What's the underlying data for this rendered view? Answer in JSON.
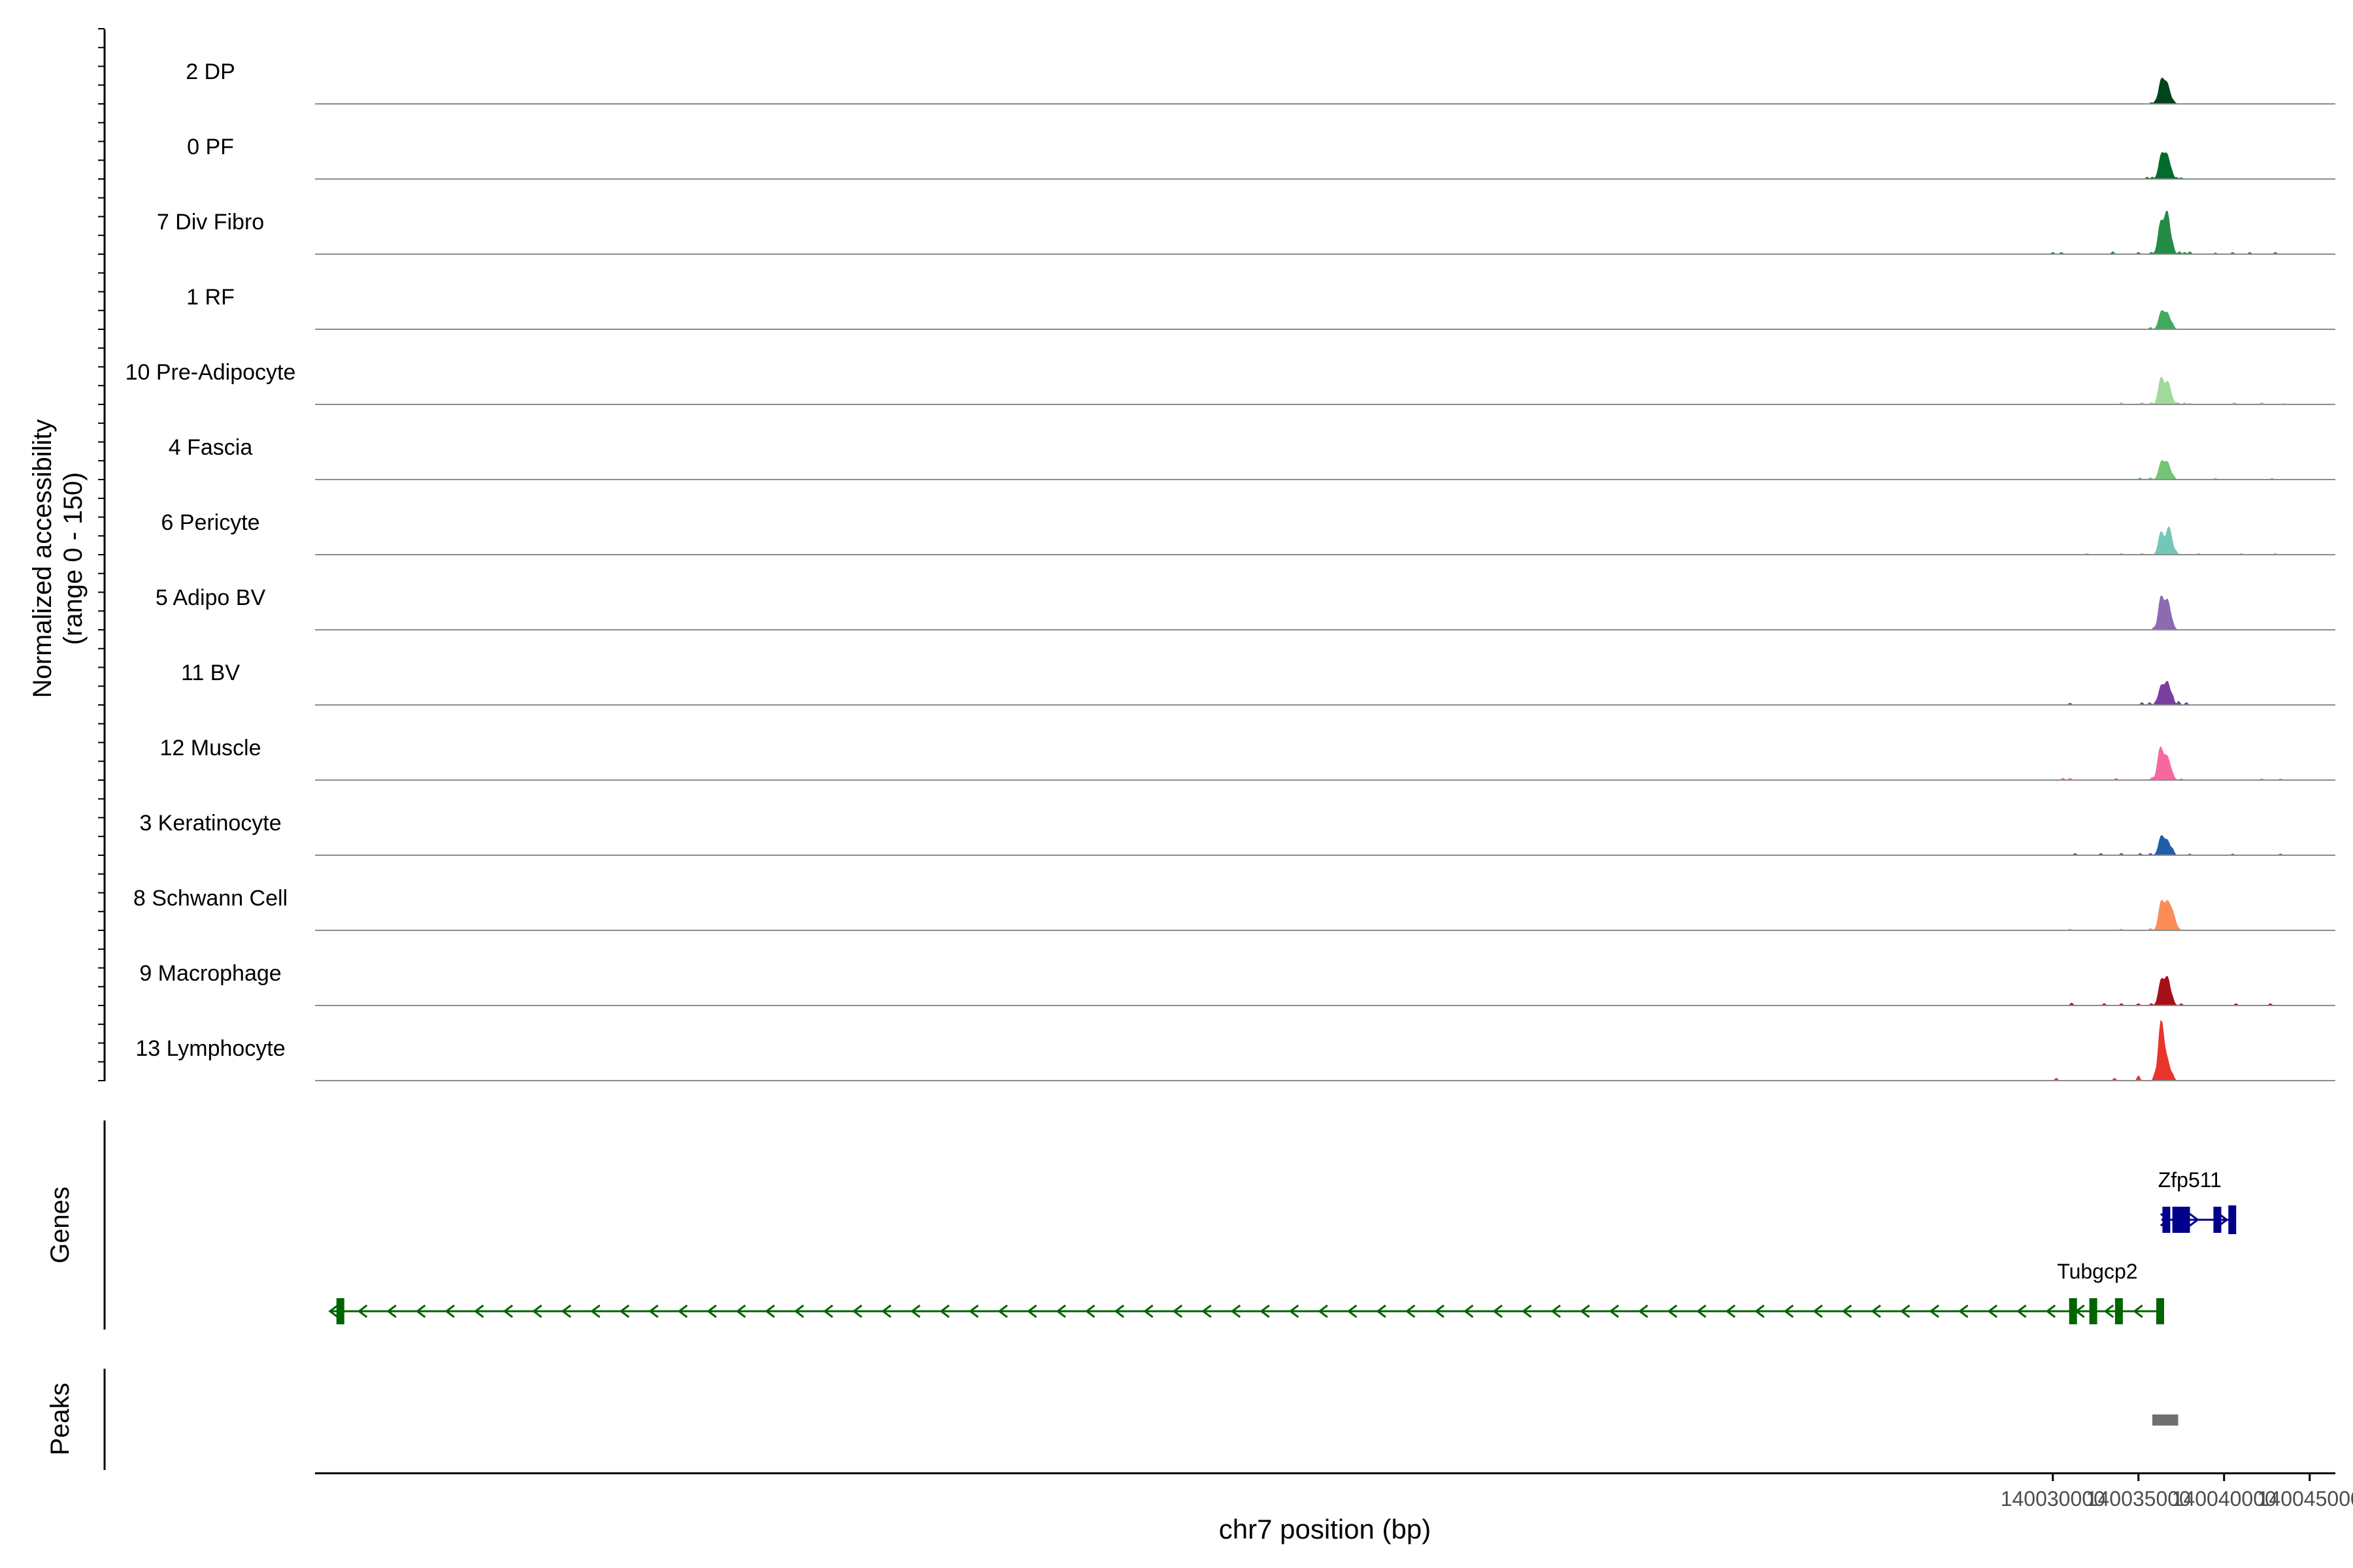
{
  "chart_data": {
    "type": "area",
    "y_axis_title_line1": "Normalized accessibility",
    "y_axis_title_line2": "(range 0 - 150)",
    "y_range": [
      0,
      150
    ],
    "x_axis_title": "chr7 position (bp)",
    "x_range": [
      139928500,
      140046500
    ],
    "x_ticks": [
      {
        "value": 140030000,
        "label": "140030000"
      },
      {
        "value": 140035000,
        "label": "140035000"
      },
      {
        "value": 140040000,
        "label": "140040000"
      },
      {
        "value": 140045000,
        "label": "140045000"
      }
    ],
    "tracks": [
      {
        "label": "2 DP",
        "color": "#00441b",
        "peaks": [
          [
            140036340,
            38
          ],
          [
            140036680,
            27
          ]
        ],
        "noise": [
          [
            140035750,
            2
          ],
          [
            140036000,
            3
          ],
          [
            140037050,
            2
          ]
        ]
      },
      {
        "label": "0 PF",
        "color": "#006d2c",
        "peaks": [
          [
            140036340,
            38
          ],
          [
            140036680,
            33
          ]
        ],
        "noise": [
          [
            140035500,
            3
          ],
          [
            140035800,
            3
          ],
          [
            140036950,
            4
          ],
          [
            140037250,
            2
          ],
          [
            140037500,
            2
          ]
        ]
      },
      {
        "label": "7 Div Fibro",
        "color": "#238b45",
        "peaks": [
          [
            140036300,
            50
          ],
          [
            140036680,
            62
          ]
        ],
        "noise": [
          [
            140030000,
            3
          ],
          [
            140030500,
            3
          ],
          [
            140033500,
            4
          ],
          [
            140035000,
            3
          ],
          [
            140035750,
            3
          ],
          [
            140037000,
            6
          ],
          [
            140037400,
            4
          ],
          [
            140037700,
            3
          ],
          [
            140038000,
            4
          ],
          [
            140039500,
            2
          ],
          [
            140040500,
            3
          ],
          [
            140041500,
            3
          ],
          [
            140043000,
            3
          ],
          [
            140044000,
            3
          ],
          [
            140045000,
            3
          ]
        ]
      },
      {
        "label": "1 RF",
        "color": "#41ab5d",
        "peaks": [
          [
            140036340,
            28
          ],
          [
            140036700,
            22
          ]
        ],
        "noise": [
          [
            140035700,
            3
          ],
          [
            140037000,
            4
          ]
        ]
      },
      {
        "label": "10 Pre-Adipocyte",
        "color": "#a1d99b",
        "peaks": [
          [
            140036320,
            42
          ],
          [
            140036730,
            32
          ]
        ],
        "noise": [
          [
            139930000,
            3
          ],
          [
            140034000,
            3
          ],
          [
            140035200,
            3
          ],
          [
            140035750,
            3
          ],
          [
            140037300,
            3
          ],
          [
            140037700,
            3
          ],
          [
            140038000,
            2
          ],
          [
            140040600,
            3
          ],
          [
            140042200,
            3
          ],
          [
            140043500,
            2
          ]
        ]
      },
      {
        "label": "4 Fascia",
        "color": "#74c476",
        "peaks": [
          [
            140036340,
            28
          ],
          [
            140036700,
            24
          ]
        ],
        "noise": [
          [
            140035100,
            3
          ],
          [
            140035700,
            3
          ],
          [
            140037050,
            3
          ],
          [
            140039500,
            2
          ],
          [
            140042800,
            2
          ]
        ]
      },
      {
        "label": "6 Pericyte",
        "color": "#74c7b8",
        "peaks": [
          [
            140036320,
            36
          ],
          [
            140036780,
            42
          ]
        ],
        "noise": [
          [
            139930500,
            2
          ],
          [
            140032000,
            2
          ],
          [
            140034000,
            2
          ],
          [
            140035200,
            2
          ],
          [
            140037200,
            3
          ],
          [
            140038500,
            2
          ],
          [
            140041000,
            2
          ],
          [
            140043000,
            2
          ],
          [
            140044500,
            2
          ]
        ]
      },
      {
        "label": "5 Adipo BV",
        "color": "#8c6bb1",
        "peaks": [
          [
            140036320,
            52
          ],
          [
            140036710,
            42
          ]
        ],
        "noise": [
          [
            140035900,
            3
          ],
          [
            140037000,
            3
          ]
        ]
      },
      {
        "label": "11 BV",
        "color": "#7a3e9d",
        "peaks": [
          [
            140036330,
            30
          ],
          [
            140036700,
            33
          ]
        ],
        "noise": [
          [
            140031000,
            3
          ],
          [
            140035200,
            4
          ],
          [
            140035650,
            4
          ],
          [
            140036000,
            3
          ],
          [
            140037000,
            8
          ],
          [
            140037350,
            6
          ],
          [
            140037800,
            4
          ],
          [
            140045000,
            3
          ],
          [
            140045400,
            3
          ],
          [
            140045700,
            3
          ]
        ]
      },
      {
        "label": "12 Muscle",
        "color": "#f768a1",
        "peaks": [
          [
            140036270,
            50
          ],
          [
            140036600,
            18
          ],
          [
            140036750,
            20
          ]
        ],
        "noise": [
          [
            140030600,
            3
          ],
          [
            140031000,
            3
          ],
          [
            140033700,
            3
          ],
          [
            140035800,
            4
          ],
          [
            140037000,
            3
          ],
          [
            140037500,
            2
          ],
          [
            140042200,
            2
          ],
          [
            140043300,
            2
          ],
          [
            140044400,
            2
          ]
        ]
      },
      {
        "label": "3 Keratinocyte",
        "color": "#225ea8",
        "peaks": [
          [
            140036330,
            30
          ],
          [
            140036700,
            20
          ]
        ],
        "noise": [
          [
            140031300,
            3
          ],
          [
            140032800,
            3
          ],
          [
            140034000,
            3
          ],
          [
            140035100,
            3
          ],
          [
            140035700,
            3
          ],
          [
            140037000,
            6
          ],
          [
            140038000,
            2
          ],
          [
            140040500,
            2
          ],
          [
            140043300,
            2
          ]
        ]
      },
      {
        "label": "8 Schwann Cell",
        "color": "#fc8d59",
        "peaks": [
          [
            140036330,
            45
          ],
          [
            140036700,
            38
          ],
          [
            140037000,
            22
          ]
        ],
        "noise": [
          [
            140031000,
            2
          ],
          [
            140034000,
            2
          ],
          [
            140035700,
            3
          ]
        ]
      },
      {
        "label": "9 Macrophage",
        "color": "#a50f15",
        "peaks": [
          [
            140036330,
            40
          ],
          [
            140036700,
            40
          ]
        ],
        "noise": [
          [
            140031100,
            4
          ],
          [
            140033000,
            3
          ],
          [
            140034000,
            3
          ],
          [
            140035000,
            3
          ],
          [
            140035750,
            3
          ],
          [
            140037000,
            4
          ],
          [
            140037500,
            3
          ],
          [
            140040700,
            3
          ],
          [
            140042700,
            3
          ],
          [
            140045100,
            2
          ]
        ]
      },
      {
        "label": "13 Lymphocyte",
        "color": "#e8352c",
        "peaks": [
          [
            140036320,
            94
          ],
          [
            140036700,
            24
          ]
        ],
        "noise": [
          [
            140030200,
            4
          ],
          [
            140033600,
            4
          ],
          [
            140035000,
            8
          ],
          [
            140035950,
            8
          ],
          [
            140037000,
            5
          ]
        ]
      }
    ],
    "genes_title": "Genes",
    "genes": [
      {
        "name": "Zfp511",
        "strand": "+",
        "color": "#00008b",
        "start": 140036330,
        "end": 140040580,
        "exons": [
          [
            140036400,
            140036620
          ],
          [
            140036980,
            140037040
          ],
          [
            140037270,
            140037450
          ],
          [
            140037550,
            140037650
          ],
          [
            140039380,
            140039480
          ],
          [
            140040250,
            140040580
          ]
        ],
        "label_x": 140038000
      },
      {
        "name": "Tubgcp2",
        "strand": "-",
        "color": "#006400",
        "start": 139929400,
        "end": 140036280,
        "exons": [
          [
            139929750,
            139929900
          ],
          [
            140030950,
            140031100
          ],
          [
            140032130,
            140032230
          ],
          [
            140033630,
            140033780
          ],
          [
            140036040,
            140036280
          ]
        ],
        "label_x": 140032600
      }
    ],
    "peaks_title": "Peaks",
    "peak_regions": [
      {
        "start": 140035810,
        "end": 140037320,
        "color": "#707070"
      }
    ]
  }
}
